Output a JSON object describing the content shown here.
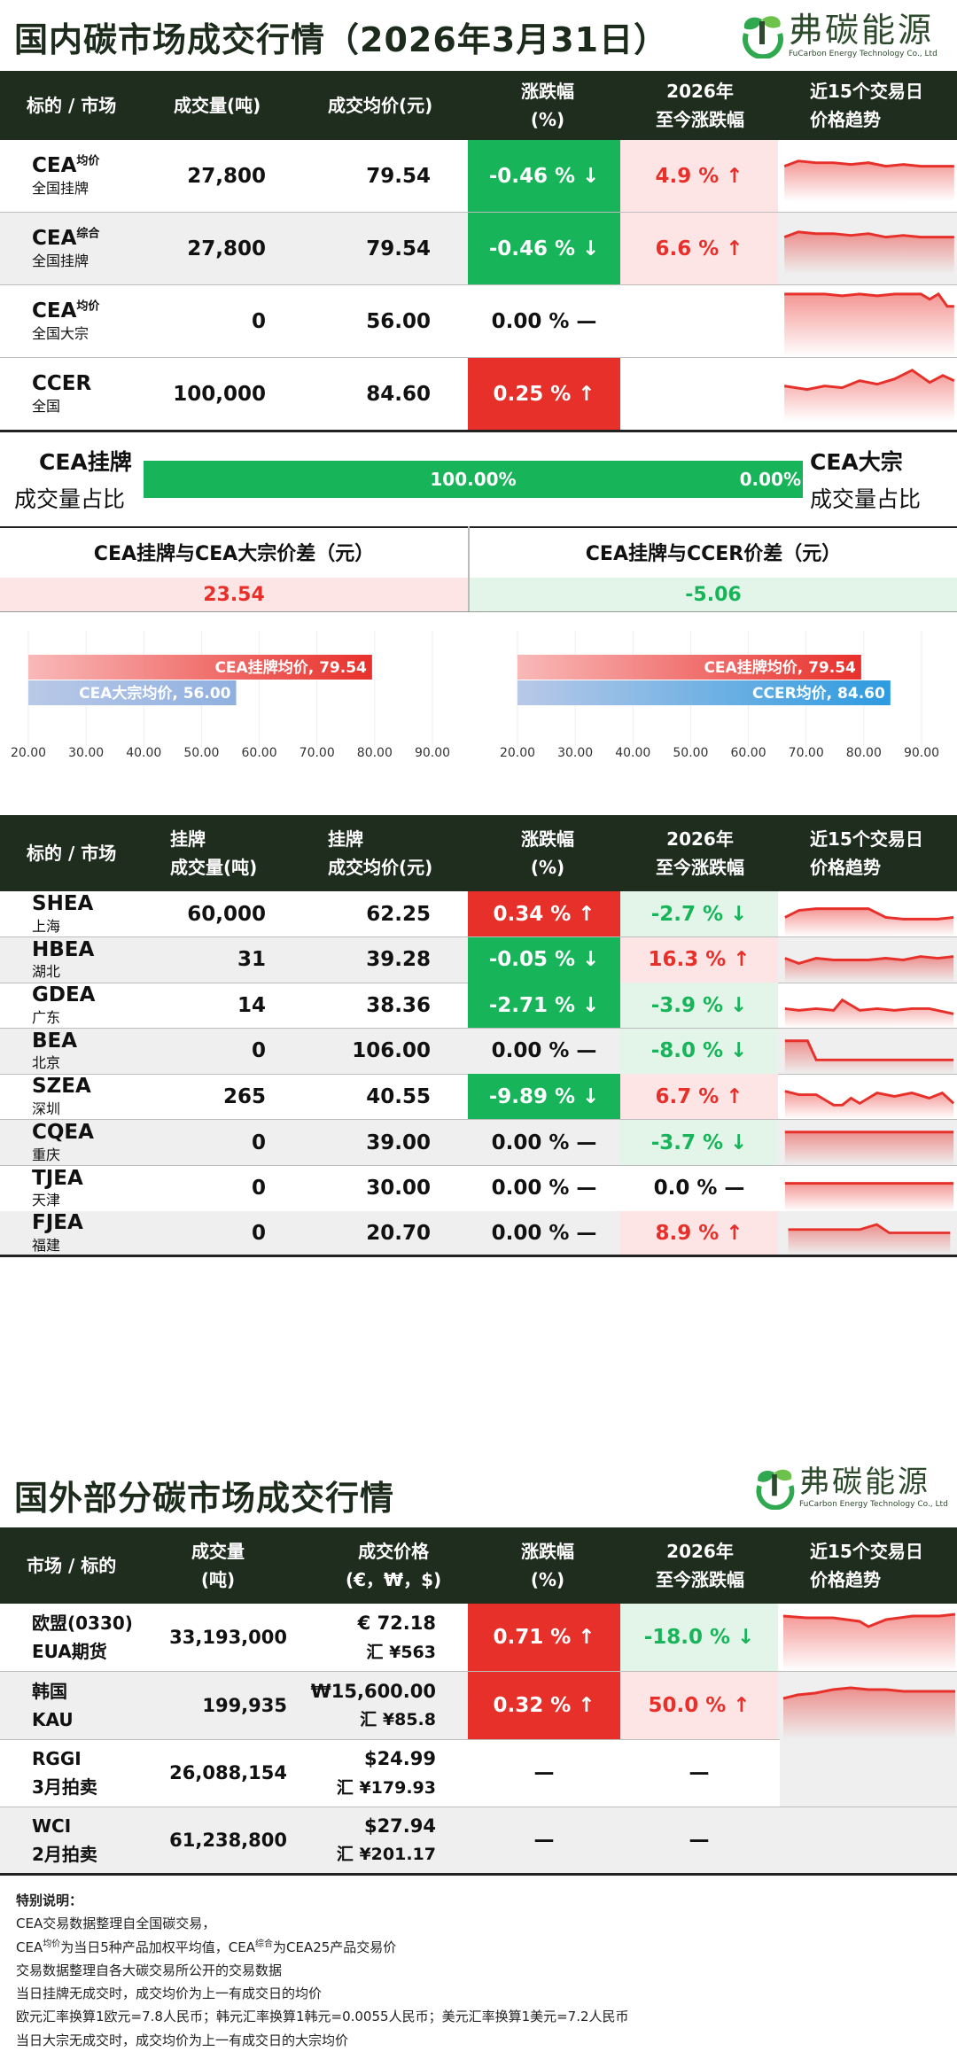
{
  "domestic": {
    "title": "国内碳市场成交行情（2026年3月31日）",
    "logo": {
      "cn": "弗碳能源",
      "en": "FuCarbon Energy Technology Co., Ltd"
    },
    "headers": {
      "c1": "标的 / 市场",
      "c2": "成交量(吨)",
      "c3": "成交均价(元)",
      "c4a": "涨跌幅",
      "c4b": "(%)",
      "c5a": "2026年",
      "c5b": "至今涨跌幅",
      "c6a": "近15个交易日",
      "c6b": "价格趋势"
    },
    "rows": [
      {
        "name": "CEA",
        "sup": "均价",
        "sub": "全国挂牌",
        "volume": "27,800",
        "price": "79.54",
        "change": "-0.46 % ↓",
        "ytd": "4.9 % ↑"
      },
      {
        "name": "CEA",
        "sup": "综合",
        "sub": "全国挂牌",
        "volume": "27,800",
        "price": "79.54",
        "change": "-0.46 % ↓",
        "ytd": "6.6 % ↑"
      },
      {
        "name": "CEA",
        "sup": "均价",
        "sub": "全国大宗",
        "volume": "0",
        "price": "56.00",
        "change": "0.00 % —",
        "ytd": ""
      },
      {
        "name": "CCER",
        "sup": "",
        "sub": "全国",
        "volume": "100,000",
        "price": "84.60",
        "change": "0.25 % ↑",
        "ytd": ""
      }
    ]
  },
  "ratio": {
    "left_a": "CEA挂牌",
    "left_b": "成交量占比",
    "right_a": "CEA大宗",
    "right_b": "成交量占比",
    "listed_pct": "100.00%",
    "bulk_pct": "0.00%",
    "listed_fraction": 1.0
  },
  "spreads": {
    "left_title": "CEA挂牌与CEA大宗价差（元）",
    "left_value": "23.54",
    "right_title": "CEA挂牌与CCER价差（元）",
    "right_value": "-5.06"
  },
  "chart_data": [
    {
      "type": "bar",
      "orientation": "horizontal",
      "categories": [
        "CEA挂牌均价",
        "CEA大宗均价"
      ],
      "values": [
        79.54,
        56.0
      ],
      "labels": [
        "CEA挂牌均价, 79.54",
        "CEA大宗均价, 56.00"
      ],
      "xlim": [
        20,
        90
      ],
      "ticks": [
        "20.00",
        "30.00",
        "40.00",
        "50.00",
        "60.00",
        "70.00",
        "80.00",
        "90.00"
      ]
    },
    {
      "type": "bar",
      "orientation": "horizontal",
      "categories": [
        "CEA挂牌均价",
        "CCER均价"
      ],
      "values": [
        79.54,
        84.6
      ],
      "labels": [
        "CEA挂牌均价, 79.54",
        "CCER均价, 84.60"
      ],
      "xlim": [
        20,
        90
      ],
      "ticks": [
        "20.00",
        "30.00",
        "40.00",
        "50.00",
        "60.00",
        "70.00",
        "80.00",
        "90.00"
      ]
    }
  ],
  "regional": {
    "headers": {
      "c1": "标的 / 市场",
      "c2a": "挂牌",
      "c2b": "成交量(吨)",
      "c3a": "挂牌",
      "c3b": "成交均价(元)",
      "c4a": "涨跌幅",
      "c4b": "(%)",
      "c5a": "2026年",
      "c5b": "至今涨跌幅",
      "c6a": "近15个交易日",
      "c6b": "价格趋势"
    },
    "rows": [
      {
        "name": "SHEA",
        "sub": "上海",
        "volume": "60,000",
        "price": "62.25",
        "change": "0.34 % ↑",
        "ytd": "-2.7 % ↓"
      },
      {
        "name": "HBEA",
        "sub": "湖北",
        "volume": "31",
        "price": "39.28",
        "change": "-0.05 % ↓",
        "ytd": "16.3 % ↑"
      },
      {
        "name": "GDEA",
        "sub": "广东",
        "volume": "14",
        "price": "38.36",
        "change": "-2.71 % ↓",
        "ytd": "-3.9 % ↓"
      },
      {
        "name": "BEA",
        "sub": "北京",
        "volume": "0",
        "price": "106.00",
        "change": "0.00 % —",
        "ytd": "-8.0 % ↓"
      },
      {
        "name": "SZEA",
        "sub": "深圳",
        "volume": "265",
        "price": "40.55",
        "change": "-9.89 % ↓",
        "ytd": "6.7 % ↑"
      },
      {
        "name": "CQEA",
        "sub": "重庆",
        "volume": "0",
        "price": "39.00",
        "change": "0.00 % —",
        "ytd": "-3.7 % ↓"
      },
      {
        "name": "TJEA",
        "sub": "天津",
        "volume": "0",
        "price": "30.00",
        "change": "0.00 % —",
        "ytd": "0.0 % —"
      },
      {
        "name": "FJEA",
        "sub": "福建",
        "volume": "0",
        "price": "20.70",
        "change": "0.00 % —",
        "ytd": "8.9 % ↑"
      }
    ]
  },
  "foreign": {
    "title": "国外部分碳市场成交行情",
    "headers": {
      "c1": "市场 / 标的",
      "c2a": "成交量",
      "c2b": "(吨)",
      "c3a": "成交价格",
      "c3b": "(€，₩，$)",
      "c4a": "涨跌幅",
      "c4b": "(%)",
      "c5a": "2026年",
      "c5b": "至今涨跌幅",
      "c6a": "近15个交易日",
      "c6b": "价格趋势"
    },
    "rows": [
      {
        "name": "欧盟(0330)",
        "sub": "EUA期货",
        "volume": "33,193,000",
        "price": "€ 72.18",
        "cny": "汇 ¥563",
        "change": "0.71 % ↑",
        "ytd": "-18.0 % ↓"
      },
      {
        "name": "韩国",
        "sub": "KAU",
        "volume": "199,935",
        "price": "₩15,600.00",
        "cny": "汇 ¥85.8",
        "change": "0.32 % ↑",
        "ytd": "50.0 % ↑"
      },
      {
        "name": "RGGI",
        "sub": "3月拍卖",
        "volume": "26,088,154",
        "price": "$24.99",
        "cny": "汇 ¥179.93",
        "change": "—",
        "ytd": "—"
      },
      {
        "name": "WCI",
        "sub": "2月拍卖",
        "volume": "61,238,800",
        "price": "$27.94",
        "cny": "汇 ¥201.17",
        "change": "—",
        "ytd": "—"
      }
    ]
  },
  "notes": {
    "title": "特别说明：",
    "l1": "CEA交易数据整理自全国碳交易，",
    "l2a": "CEA",
    "l2sup": "均价",
    "l2b": "为当日5种产品加权平均值，CEA",
    "l2sup2": "综合",
    "l2c": "为CEA25产品交易价",
    "l3": "交易数据整理自各大碳交易所公开的交易数据",
    "l4": "当日挂牌无成交时，成交均价为上一有成交日的均价",
    "l5": "欧元汇率换算1欧元=7.8人民币；韩元汇率换算1韩元=0.0055人民币；美元汇率换算1美元=7.2人民币",
    "l6": "当日大宗无成交时，成交均价为上一有成交日的大宗均价"
  }
}
